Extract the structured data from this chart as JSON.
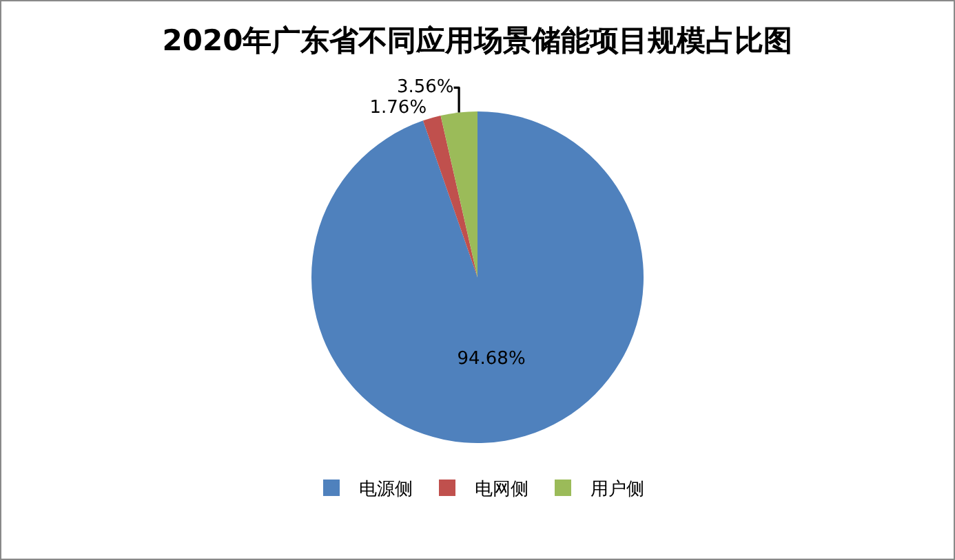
{
  "chart_data": {
    "type": "pie",
    "title": "2020年广东省不同应用场景储能项目规模占比图",
    "categories": [
      "电源侧",
      "电网侧",
      "用户侧"
    ],
    "values": [
      94.68,
      1.76,
      3.56
    ],
    "colors": [
      "#4f81bd",
      "#c0504d",
      "#9bbb59"
    ],
    "value_labels": [
      "94.68%",
      "1.76%",
      "3.56%"
    ],
    "legend": "bottom"
  }
}
